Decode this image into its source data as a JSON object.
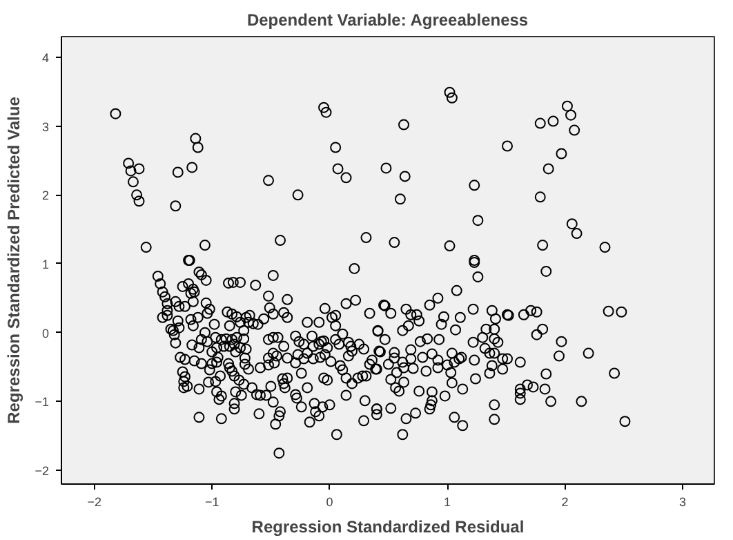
{
  "chart_data": {
    "type": "scatter",
    "title": "Dependent Variable: Agreeableness",
    "xlabel": "Regression Standardized Residual",
    "ylabel": "Regression Standardized Predicted Value",
    "xlim": [
      -2.28,
      3.27
    ],
    "ylim": [
      -2.2,
      4.3
    ],
    "xticks": [
      -2,
      -1,
      0,
      1,
      2,
      3
    ],
    "yticks": [
      -2,
      -1,
      0,
      1,
      2,
      3,
      4
    ],
    "grid": false,
    "marker": "circle",
    "series": [
      {
        "color": "#000000",
        "x": [
          -1.82,
          -1.71,
          -1.69,
          -1.62,
          -1.67,
          -1.64,
          -1.62,
          -1.56,
          -1.31,
          -1.29,
          -1.17,
          -1.14,
          -1.12,
          -1.06,
          -1.19,
          -0.52,
          -0.27,
          -0.42,
          -0.05,
          -0.03,
          0.05,
          0.07,
          0.14,
          0.31,
          1.02,
          1.04,
          0.63,
          0.48,
          0.64,
          0.6,
          0.55,
          1.02,
          1.23,
          1.26,
          1.23,
          1.51,
          1.79,
          1.9,
          2.02,
          2.05,
          2.08,
          1.97,
          1.86,
          1.79,
          2.06,
          2.1,
          1.81,
          2.34,
          1.23,
          1.26,
          1.84,
          1.08,
          2.37,
          2.48,
          2.42,
          2.14,
          2.51,
          2.2,
          1.97,
          1.95,
          1.84,
          1.83,
          1.88,
          1.73,
          1.68,
          1.62,
          1.62,
          1.62,
          1.62,
          1.81,
          1.76,
          1.71,
          1.76,
          1.65,
          1.51,
          1.52,
          1.38,
          1.41,
          1.33,
          1.4,
          1.3,
          1.4,
          1.43,
          1.32,
          1.36,
          1.4,
          1.47,
          1.51,
          1.38,
          1.47,
          1.36,
          1.4,
          1.4,
          1.22,
          1.23,
          1.24,
          1.22,
          1.11,
          1.07,
          0.97,
          0.95,
          0.93,
          0.92,
          0.85,
          0.47,
          0.52,
          0.65,
          0.69,
          0.74,
          0.76,
          0.67,
          0.62,
          0.41,
          0.47,
          0.77,
          0.83,
          0.69,
          0.55,
          0.43,
          0.55,
          0.5,
          0.62,
          0.69,
          0.79,
          0.87,
          0.92,
          0.92,
          0.82,
          0.63,
          0.71,
          0.57,
          0.4,
          0.52,
          0.63,
          0.56,
          0.59,
          0.76,
          0.87,
          0.98,
          1.04,
          1.03,
          1.0,
          1.04,
          1.06,
          1.1,
          1.12,
          1.13,
          0.87,
          0.86,
          0.85,
          0.73,
          0.65,
          0.52,
          0.4,
          1.06,
          1.13,
          0.62,
          0.4,
          -1.2,
          -1.46,
          -1.44,
          -1.42,
          -1.4,
          -1.38,
          -1.42,
          -1.38,
          -1.38,
          -1.35,
          -1.33,
          -1.32,
          -1.31,
          -1.28,
          -1.29,
          -1.31,
          -1.28,
          -1.25,
          -1.2,
          -1.16,
          -1.18,
          -1.15,
          -1.11,
          -1.09,
          -1.05,
          -1.16,
          -1.23,
          -1.05,
          -1.02,
          -1.04,
          -1.12,
          -1.18,
          -1.16,
          -0.98,
          -0.86,
          -0.82,
          -0.76,
          -0.63,
          -0.48,
          -0.52,
          -0.36,
          -0.51,
          -0.48,
          -0.39,
          -0.36,
          -0.56,
          -0.68,
          -0.71,
          -0.69,
          -0.79,
          -0.87,
          -0.83,
          -0.65,
          -0.61,
          -0.76,
          -0.85,
          -1.06,
          -1.09,
          -1.04,
          -0.97,
          -0.92,
          -0.88,
          -0.83,
          -0.79,
          -0.73,
          -0.73,
          -0.85,
          -0.81,
          -0.76,
          -0.71,
          -0.8,
          -0.9,
          -0.96,
          -1.0,
          -0.95,
          -0.96,
          -1.0,
          -1.09,
          -1.15,
          -1.17,
          -1.11,
          -1.23,
          -1.27,
          -1.25,
          -1.23,
          -1.24,
          -1.24,
          -1.21,
          -1.11,
          -1.03,
          -0.97,
          -1.02,
          -0.86,
          -0.85,
          -0.83,
          -0.72,
          -0.72,
          -0.69,
          -0.81,
          -0.93,
          -0.96,
          -0.92,
          -0.94,
          -0.77,
          -0.73,
          -0.8,
          -0.75,
          -0.66,
          -0.62,
          -0.59,
          -0.54,
          -0.48,
          -0.5,
          -0.59,
          -0.52,
          -0.52,
          -0.48,
          -0.45,
          -0.47,
          -0.52,
          -0.48,
          -0.44,
          -0.39,
          -0.36,
          -0.4,
          -0.39,
          -0.36,
          -0.38,
          -0.42,
          -0.43,
          -0.46,
          -0.6,
          -0.81,
          -0.81,
          -0.92,
          -1.11,
          -0.43,
          -0.29,
          -0.26,
          -0.22,
          -0.19,
          -0.09,
          -0.04,
          0.02,
          0.05,
          0.05,
          0.14,
          0.22,
          0.21,
          0.34,
          0.46,
          0.41,
          0.11,
          -0.15,
          -0.05,
          0.05,
          -0.14,
          -0.09,
          -0.07,
          -0.02,
          0.08,
          0.16,
          0.25,
          0.29,
          0.18,
          0.19,
          0.16,
          0.42,
          0.36,
          0.34,
          0.39,
          0.28,
          0.31,
          0.24,
          0.19,
          0.14,
          0.11,
          0.09,
          0.01,
          -0.04,
          -0.08,
          -0.14,
          -0.19,
          -0.22,
          -0.27,
          -0.29,
          -0.24,
          -0.19,
          -0.29,
          -0.28,
          -0.24,
          -0.13,
          -0.12,
          -0.09,
          -0.06,
          0.0,
          -0.17,
          -0.05,
          -0.02,
          0.06,
          0.14,
          0.3,
          0.29,
          0.4
        ],
        "values": [
          3.18,
          2.46,
          2.35,
          2.38,
          2.19,
          2.0,
          1.91,
          1.24,
          1.84,
          2.33,
          2.4,
          2.82,
          2.69,
          1.27,
          1.05,
          2.21,
          2.0,
          1.34,
          3.27,
          3.2,
          2.69,
          2.38,
          2.25,
          1.38,
          3.49,
          3.41,
          3.02,
          2.39,
          2.27,
          1.94,
          1.31,
          1.26,
          2.14,
          1.63,
          1.05,
          2.71,
          3.04,
          3.07,
          3.29,
          3.16,
          2.94,
          2.6,
          2.38,
          1.97,
          1.58,
          1.44,
          1.27,
          1.24,
          1.02,
          0.81,
          0.89,
          0.61,
          0.31,
          0.3,
          -0.59,
          -1.0,
          -1.29,
          -0.3,
          -0.13,
          -0.34,
          -0.6,
          -0.82,
          -1.0,
          -0.79,
          -0.76,
          -0.82,
          -0.88,
          -0.97,
          -0.43,
          0.05,
          -0.03,
          0.32,
          0.3,
          0.26,
          0.26,
          0.25,
          0.32,
          0.2,
          0.05,
          0.05,
          -0.07,
          -0.09,
          -0.14,
          -0.23,
          -0.3,
          -0.3,
          -0.38,
          -0.38,
          -0.48,
          -0.53,
          -0.59,
          -1.05,
          -1.26,
          -0.14,
          -0.4,
          -0.67,
          0.34,
          0.22,
          0.04,
          0.23,
          0.12,
          -0.1,
          0.5,
          0.4,
          0.39,
          0.28,
          0.34,
          0.26,
          0.26,
          0.17,
          0.1,
          0.03,
          0.02,
          -0.1,
          -0.13,
          -0.09,
          -0.25,
          -0.29,
          -0.28,
          -0.37,
          -0.46,
          -0.43,
          -0.38,
          -0.36,
          -0.31,
          -0.4,
          -0.51,
          -0.56,
          -0.51,
          -0.52,
          -0.58,
          -0.53,
          -0.68,
          -0.72,
          -0.8,
          -0.85,
          -0.85,
          -0.86,
          -0.92,
          -0.73,
          -0.58,
          -0.47,
          -0.3,
          -0.43,
          -0.38,
          -0.36,
          -0.82,
          -0.99,
          -1.05,
          -1.11,
          -1.17,
          -1.25,
          -1.1,
          -1.11,
          -1.23,
          -1.35,
          -1.48,
          -1.19,
          1.05,
          0.82,
          0.71,
          0.59,
          0.52,
          0.42,
          0.22,
          0.25,
          0.32,
          0.05,
          0.03,
          -0.03,
          -0.15,
          0.07,
          0.17,
          0.45,
          0.38,
          0.67,
          0.71,
          0.63,
          0.57,
          0.59,
          0.88,
          0.84,
          0.76,
          0.45,
          0.38,
          0.43,
          0.34,
          0.28,
          0.22,
          0.19,
          0.1,
          0.12,
          0.72,
          0.73,
          0.73,
          0.69,
          0.83,
          0.53,
          0.48,
          0.36,
          0.27,
          0.29,
          0.22,
          0.2,
          0.25,
          0.22,
          0.15,
          0.23,
          0.3,
          0.27,
          0.13,
          0.12,
          0.15,
          0.1,
          0.0,
          -0.1,
          -0.13,
          -0.07,
          -0.1,
          -0.09,
          -0.1,
          -0.07,
          0.03,
          -0.09,
          -0.2,
          -0.17,
          -0.22,
          -0.24,
          -0.28,
          -0.2,
          -0.22,
          -0.28,
          -0.36,
          -0.43,
          -0.45,
          -0.45,
          -0.41,
          -0.18,
          -0.22,
          -0.39,
          -0.36,
          -0.57,
          -0.64,
          -0.71,
          -0.8,
          -0.78,
          -0.82,
          -0.72,
          -0.71,
          -0.54,
          -0.45,
          -0.51,
          -0.56,
          -0.37,
          -0.46,
          -0.53,
          -0.63,
          -0.63,
          -0.86,
          -0.92,
          -0.97,
          -0.69,
          -0.75,
          -0.86,
          -0.91,
          -0.8,
          -0.9,
          -0.91,
          -0.91,
          -1.01,
          -0.78,
          -0.51,
          -0.47,
          -0.37,
          -0.3,
          -0.34,
          -0.44,
          -0.1,
          -0.07,
          -0.07,
          -0.2,
          -0.37,
          -0.67,
          -0.74,
          -0.66,
          -0.8,
          -1.15,
          -1.21,
          -1.33,
          -1.18,
          -1.03,
          -1.11,
          -1.25,
          -1.23,
          -1.75,
          -0.05,
          -0.13,
          -0.17,
          0.15,
          0.15,
          0.35,
          0.22,
          0.25,
          0.1,
          0.42,
          0.47,
          0.93,
          0.28,
          0.4,
          0.03,
          -0.02,
          -0.05,
          -0.12,
          -0.1,
          -0.2,
          -0.17,
          -0.13,
          -0.22,
          -0.17,
          -0.14,
          -0.17,
          -0.24,
          -0.2,
          -0.27,
          -0.34,
          -0.27,
          -0.4,
          -0.46,
          -0.53,
          -0.63,
          -0.63,
          -0.66,
          -0.74,
          -0.66,
          -0.54,
          -0.48,
          -0.42,
          -0.32,
          -0.36,
          -0.38,
          -0.3,
          -0.38,
          -0.32,
          -0.44,
          -0.59,
          -0.8,
          -0.9,
          -0.95,
          -1.08,
          -1.03,
          -1.15,
          -1.21,
          -1.08,
          -1.05,
          -1.3,
          -0.66,
          -0.69,
          -1.48,
          -0.91,
          -0.99,
          -1.28,
          -1.11
        ]
      }
    ]
  }
}
